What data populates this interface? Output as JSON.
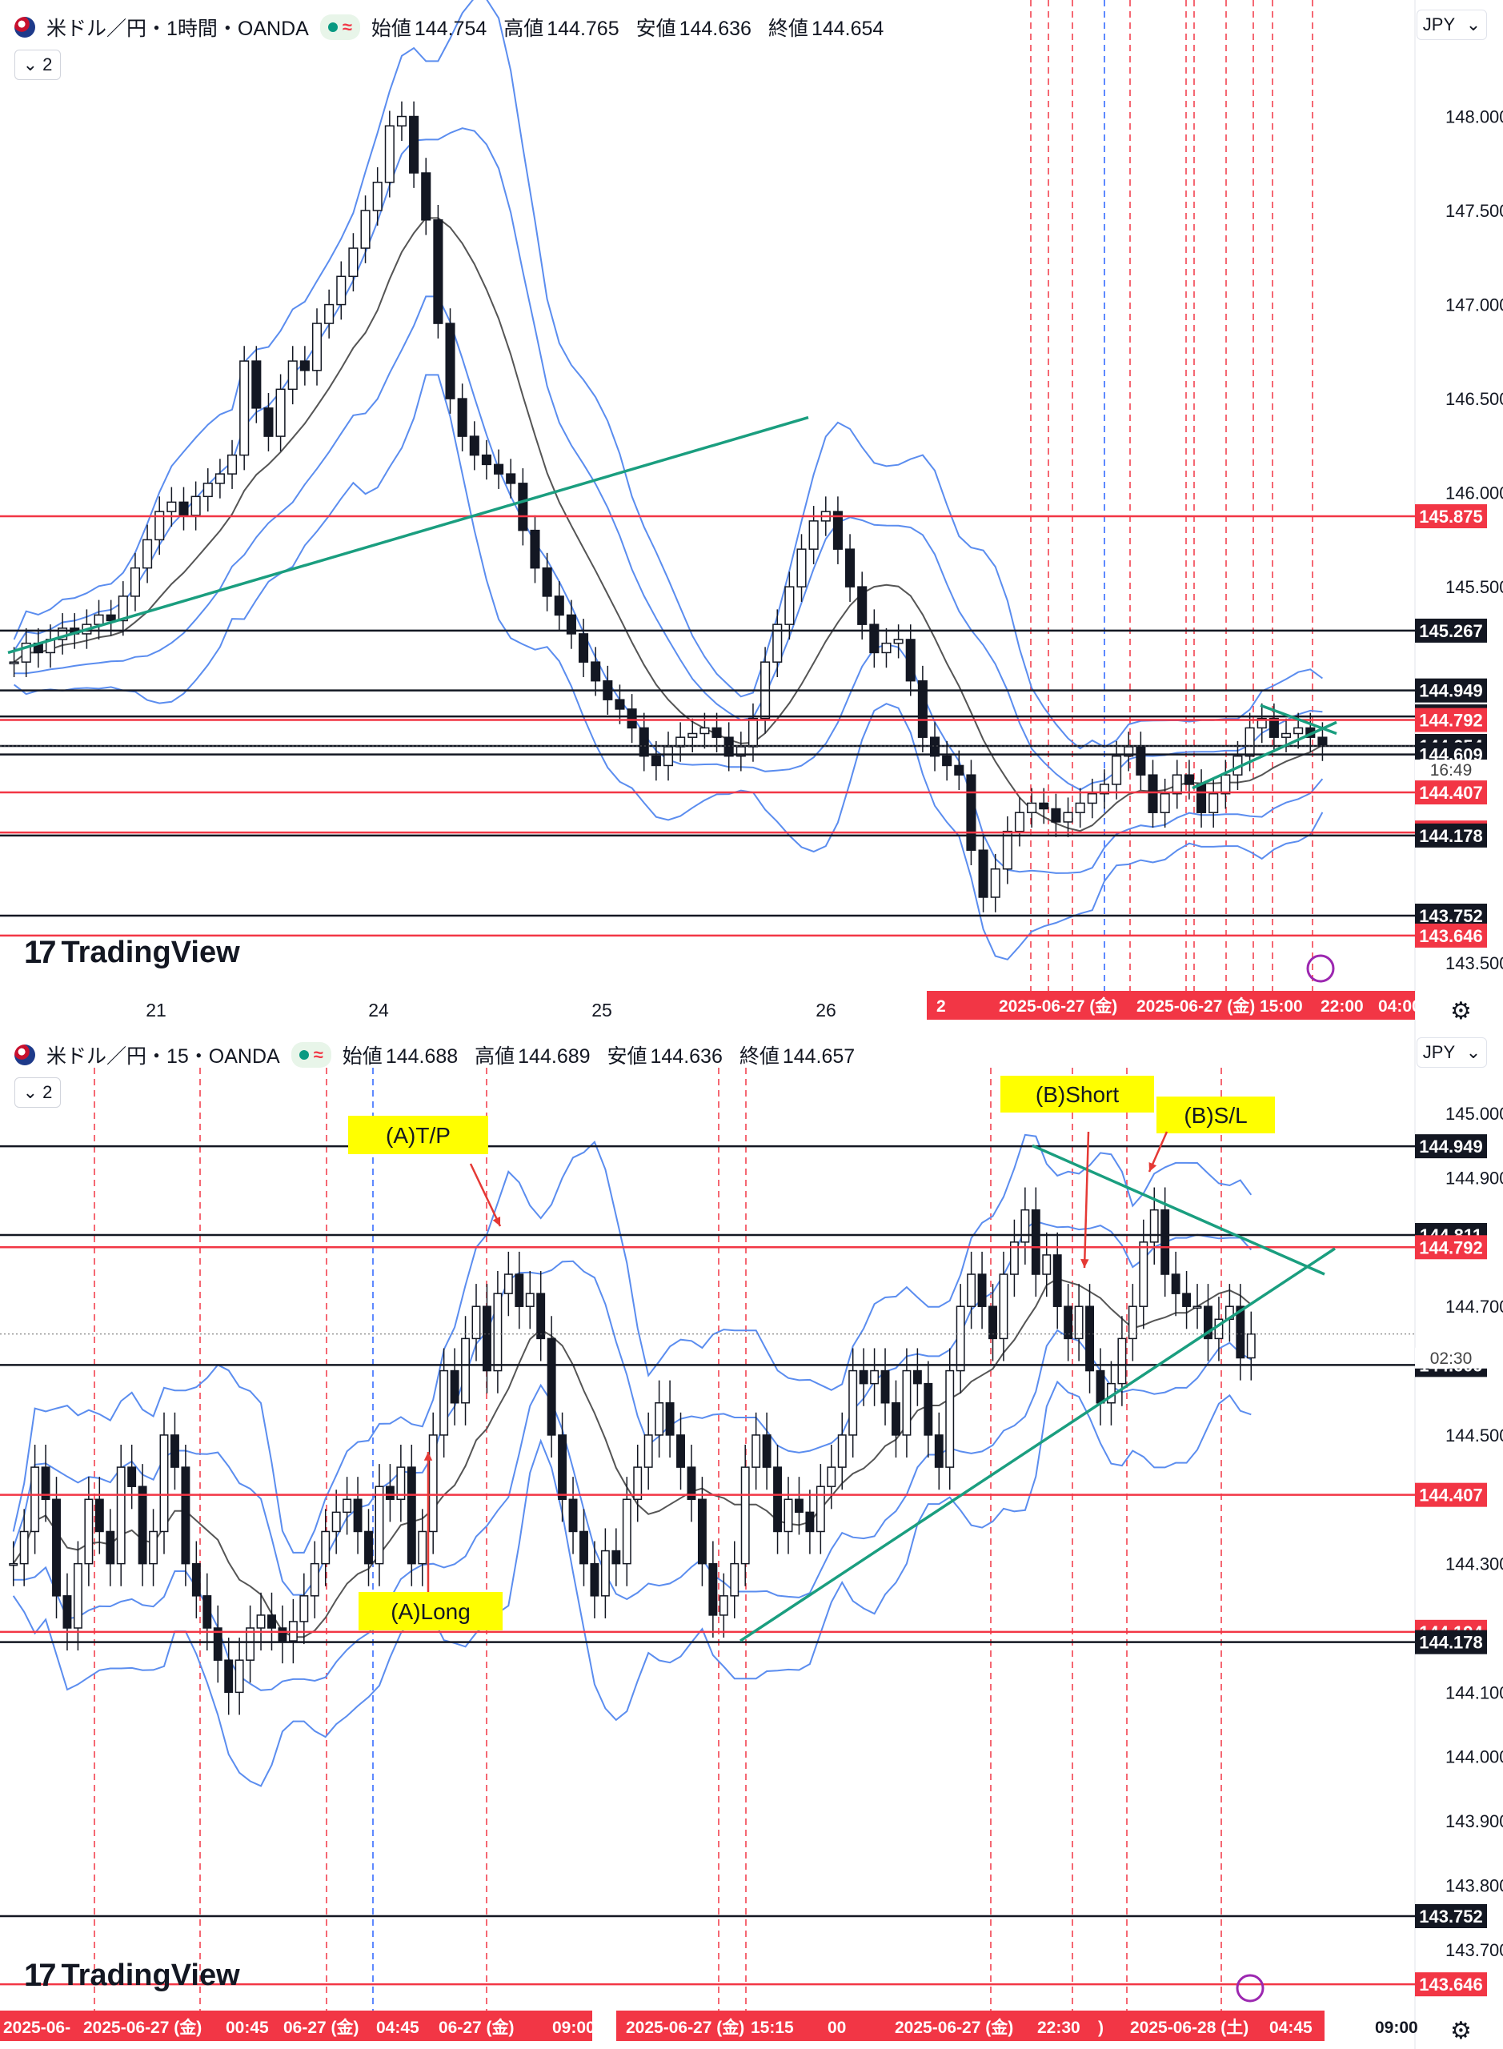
{
  "colors": {
    "red": "#f23645",
    "black": "#131722",
    "blue": "#2962ff",
    "band": "#5b8def",
    "teal": "#1a9e7f",
    "ma": "#555555",
    "yellow": "#ffff00"
  },
  "panel1": {
    "symbol": "米ドル／円・1時間・OANDA",
    "ohlc": [
      {
        "k": "始値",
        "v": "144.754"
      },
      {
        "k": "高値",
        "v": "144.765"
      },
      {
        "k": "安値",
        "v": "144.636"
      },
      {
        "k": "終値",
        "v": "144.654"
      }
    ],
    "collapse": "2",
    "currency": "JPY",
    "logo": "TradingView",
    "price_ticks": [
      "148.000",
      "147.500",
      "147.000",
      "146.500",
      "146.000",
      "145.500",
      "143.500"
    ],
    "x_ticks": [
      "21",
      "24",
      "25",
      "26"
    ],
    "time_labels": [
      "2",
      "2025-06-27 (金)",
      "2025-06-27 (金)",
      "15:00",
      "22:00",
      "04:00"
    ],
    "countdown": "16:49"
  },
  "panel2": {
    "symbol": "米ドル／円・15・OANDA",
    "ohlc": [
      {
        "k": "始値",
        "v": "144.688"
      },
      {
        "k": "高値",
        "v": "144.689"
      },
      {
        "k": "安値",
        "v": "144.636"
      },
      {
        "k": "終値",
        "v": "144.657"
      }
    ],
    "collapse": "2",
    "currency": "JPY",
    "logo": "TradingView",
    "price_ticks": [
      "145.000",
      "144.900",
      "144.700",
      "144.500",
      "144.300",
      "144.100",
      "144.000",
      "143.900",
      "143.800",
      "143.700"
    ],
    "time_labels": [
      "2025-06-",
      "2025-06-27 (金)",
      "00:45",
      "06-27 (金)",
      "04:45",
      "06-27 (金)",
      "09:00",
      ":0",
      "2025-06-27 (金)",
      "15:15",
      "00",
      "2025-06-27 (金)",
      "22:30",
      ")",
      "2025-06-28 (土)",
      "04:45",
      "09:00"
    ],
    "countdown": "02:30",
    "annotations": [
      "(A)T/P",
      "(A)Long",
      "(B)Short",
      "(B)S/L"
    ]
  },
  "chart_data": [
    {
      "type": "candlestick",
      "title": "米ドル／円・1時間・OANDA",
      "x_ticks": [
        "21",
        "24",
        "25",
        "26"
      ],
      "ylim": [
        143.45,
        148.3
      ],
      "last": 144.654,
      "levels": [
        {
          "price": 145.875,
          "color": "red"
        },
        {
          "price": 145.267,
          "color": "black"
        },
        {
          "price": 144.949,
          "color": "black"
        },
        {
          "price": 144.811,
          "color": "black"
        },
        {
          "price": 144.792,
          "color": "red"
        },
        {
          "price": 144.654,
          "color": "black"
        },
        {
          "price": 144.609,
          "color": "black"
        },
        {
          "price": 144.407,
          "color": "red"
        },
        {
          "price": 144.194,
          "color": "red"
        },
        {
          "price": 144.178,
          "color": "black"
        },
        {
          "price": 143.752,
          "color": "black"
        },
        {
          "price": 143.646,
          "color": "red"
        }
      ],
      "closes": [
        145.1,
        145.2,
        145.15,
        145.22,
        145.28,
        145.25,
        145.3,
        145.35,
        145.32,
        145.45,
        145.6,
        145.75,
        145.9,
        145.95,
        145.88,
        145.98,
        146.05,
        146.1,
        146.2,
        146.7,
        146.45,
        146.3,
        146.55,
        146.7,
        146.65,
        146.9,
        147.0,
        147.15,
        147.3,
        147.5,
        147.65,
        147.95,
        148.0,
        147.7,
        147.45,
        146.9,
        146.5,
        146.3,
        146.2,
        146.15,
        146.1,
        146.05,
        145.8,
        145.6,
        145.45,
        145.35,
        145.25,
        145.1,
        145.0,
        144.9,
        144.85,
        144.75,
        144.6,
        144.55,
        144.65,
        144.7,
        144.72,
        144.75,
        144.7,
        144.6,
        144.65,
        144.8,
        145.1,
        145.3,
        145.5,
        145.7,
        145.85,
        145.9,
        145.7,
        145.5,
        145.3,
        145.15,
        145.2,
        145.22,
        145.0,
        144.7,
        144.6,
        144.55,
        144.5,
        144.1,
        143.85,
        144.0,
        144.2,
        144.3,
        144.35,
        144.32,
        144.25,
        144.3,
        144.35,
        144.4,
        144.45,
        144.6,
        144.65,
        144.5,
        144.3,
        144.4,
        144.5,
        144.45,
        144.3,
        144.4,
        144.5,
        144.6,
        144.75,
        144.8,
        144.7,
        144.72,
        144.75,
        144.7,
        144.654
      ]
    },
    {
      "type": "candlestick",
      "title": "米ドル／円・15・OANDA",
      "ylim": [
        143.64,
        145.04
      ],
      "last": 144.657,
      "levels": [
        {
          "price": 144.949,
          "color": "black"
        },
        {
          "price": 144.811,
          "color": "black"
        },
        {
          "price": 144.792,
          "color": "red"
        },
        {
          "price": 144.609,
          "color": "black"
        },
        {
          "price": 144.407,
          "color": "red"
        },
        {
          "price": 144.194,
          "color": "red"
        },
        {
          "price": 144.178,
          "color": "black"
        },
        {
          "price": 143.752,
          "color": "black"
        },
        {
          "price": 143.646,
          "color": "red"
        }
      ],
      "annotations": [
        {
          "text": "(A)T/P",
          "x_index": 47,
          "price": 144.82
        },
        {
          "text": "(A)Long",
          "x_index": 40,
          "price": 144.45
        },
        {
          "text": "(B)Short",
          "x_index": 102,
          "price": 144.72
        },
        {
          "text": "(B)S/L",
          "x_index": 108,
          "price": 144.89
        }
      ],
      "closes": [
        144.3,
        144.35,
        144.45,
        144.4,
        144.25,
        144.2,
        144.3,
        144.4,
        144.35,
        144.3,
        144.45,
        144.42,
        144.3,
        144.35,
        144.5,
        144.45,
        144.3,
        144.25,
        144.2,
        144.15,
        144.1,
        144.15,
        144.2,
        144.22,
        144.2,
        144.18,
        144.21,
        144.25,
        144.3,
        144.35,
        144.38,
        144.4,
        144.35,
        144.3,
        144.42,
        144.4,
        144.45,
        144.3,
        144.35,
        144.5,
        144.6,
        144.55,
        144.65,
        144.7,
        144.6,
        144.72,
        144.75,
        144.7,
        144.72,
        144.65,
        144.5,
        144.4,
        144.35,
        144.3,
        144.25,
        144.32,
        144.3,
        144.4,
        144.45,
        144.5,
        144.55,
        144.5,
        144.45,
        144.4,
        144.3,
        144.22,
        144.25,
        144.3,
        144.45,
        144.5,
        144.45,
        144.35,
        144.4,
        144.38,
        144.35,
        144.42,
        144.45,
        144.5,
        144.6,
        144.58,
        144.6,
        144.55,
        144.5,
        144.6,
        144.58,
        144.5,
        144.45,
        144.6,
        144.7,
        144.75,
        144.7,
        144.65,
        144.75,
        144.8,
        144.85,
        144.75,
        144.78,
        144.7,
        144.65,
        144.7,
        144.6,
        144.55,
        144.58,
        144.65,
        144.7,
        144.8,
        144.85,
        144.75,
        144.72,
        144.7,
        144.7,
        144.65,
        144.68,
        144.7,
        144.62,
        144.657
      ]
    }
  ]
}
